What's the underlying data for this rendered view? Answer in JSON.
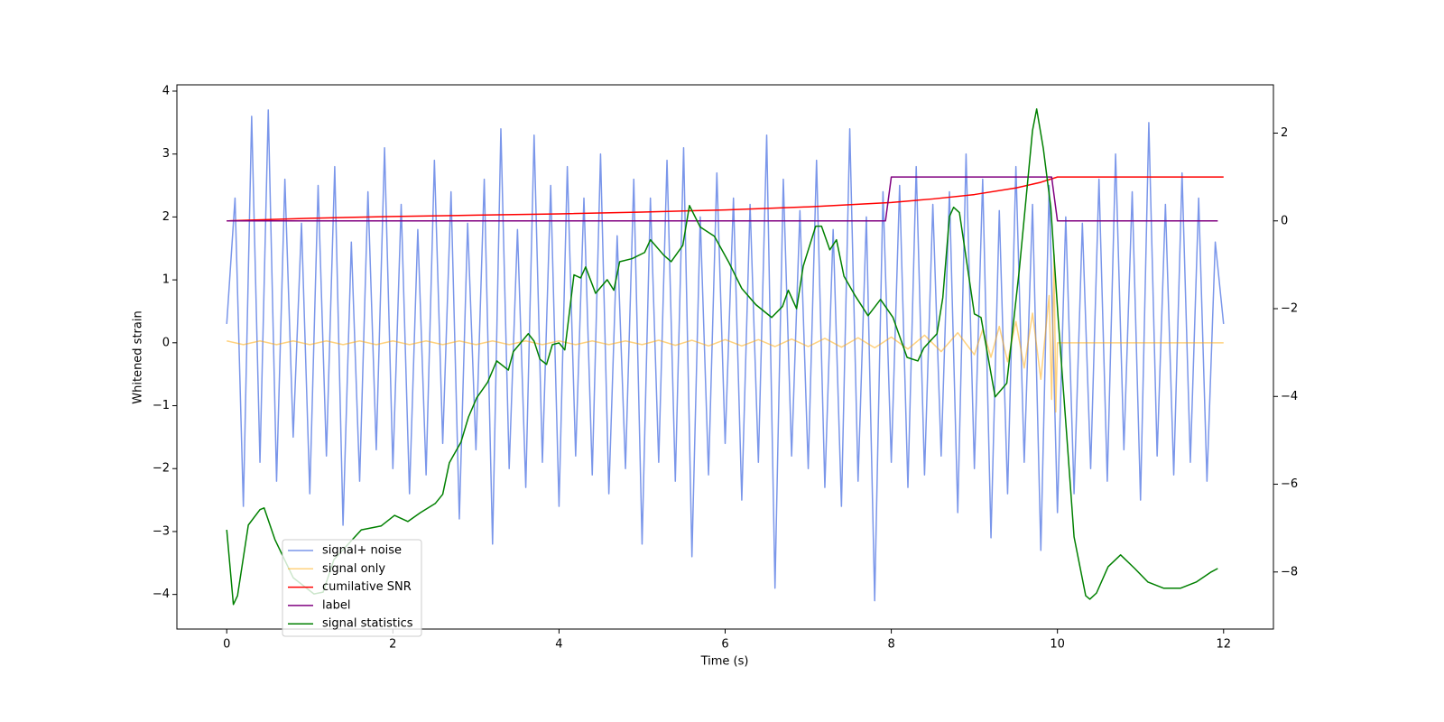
{
  "chart_data": {
    "type": "line",
    "xlabel": "Time (s)",
    "ylabel": "Whitened strain",
    "xlim": [
      -0.6,
      12.6
    ],
    "xticks": [
      0,
      2,
      4,
      6,
      8,
      10,
      12
    ],
    "ylim": [
      -4.55,
      4.1
    ],
    "yticks": [
      {
        "value": -4,
        "label": "−4"
      },
      {
        "value": -3,
        "label": "−3"
      },
      {
        "value": -2,
        "label": "−2"
      },
      {
        "value": -1,
        "label": "−1"
      },
      0,
      1,
      2,
      3,
      4
    ],
    "y2lim": [
      -9.3,
      3.1
    ],
    "y2ticks": [
      {
        "value": -8,
        "label": "−8"
      },
      {
        "value": -6,
        "label": "−6"
      },
      {
        "value": -4,
        "label": "−4"
      },
      {
        "value": -2,
        "label": "−2"
      },
      0,
      2
    ],
    "legend": "lower left",
    "series": [
      {
        "name": "signal+ noise",
        "color": "#4169e1",
        "alpha": 0.7,
        "x": [
          0,
          0.1,
          0.2,
          0.3,
          0.4,
          0.5,
          0.6,
          0.7,
          0.8,
          0.9,
          1,
          1.1,
          1.2,
          1.3,
          1.4,
          1.5,
          1.6,
          1.7,
          1.8,
          1.9,
          2,
          2.1,
          2.2,
          2.3,
          2.4,
          2.5,
          2.6,
          2.7,
          2.8,
          2.9,
          3,
          3.1,
          3.2,
          3.3,
          3.4,
          3.5,
          3.6,
          3.7,
          3.8,
          3.9,
          4,
          4.1,
          4.2,
          4.3,
          4.4,
          4.5,
          4.6,
          4.7,
          4.8,
          4.9,
          5,
          5.1,
          5.2,
          5.3,
          5.4,
          5.5,
          5.6,
          5.7,
          5.8,
          5.9,
          6,
          6.1,
          6.2,
          6.3,
          6.4,
          6.5,
          6.6,
          6.7,
          6.8,
          6.9,
          7,
          7.1,
          7.2,
          7.3,
          7.4,
          7.5,
          7.6,
          7.7,
          7.8,
          7.9,
          8,
          8.1,
          8.2,
          8.3,
          8.4,
          8.5,
          8.6,
          8.7,
          8.8,
          8.9,
          9,
          9.1,
          9.2,
          9.3,
          9.4,
          9.5,
          9.6,
          9.7,
          9.8,
          9.9,
          10,
          10.1,
          10.2,
          10.3,
          10.4,
          10.5,
          10.6,
          10.7,
          10.8,
          10.9,
          11,
          11.1,
          11.2,
          11.3,
          11.4,
          11.5,
          11.6,
          11.7,
          11.8,
          11.9,
          12
        ],
        "values": [
          0.3,
          2.3,
          -2.6,
          3.6,
          -1.9,
          3.7,
          -2.2,
          2.6,
          -1.5,
          1.9,
          -2.4,
          2.5,
          -1.8,
          2.8,
          -2.9,
          1.6,
          -2.2,
          2.4,
          -1.7,
          3.1,
          -2.0,
          2.2,
          -2.4,
          1.8,
          -2.1,
          2.9,
          -1.6,
          2.4,
          -2.8,
          1.9,
          -1.7,
          2.6,
          -3.2,
          3.4,
          -2.0,
          1.8,
          -2.3,
          3.3,
          -1.9,
          2.5,
          -2.6,
          2.8,
          -1.8,
          2.3,
          -2.1,
          3.0,
          -2.4,
          1.7,
          -2.0,
          2.6,
          -3.2,
          2.3,
          -1.9,
          2.9,
          -2.2,
          3.1,
          -3.4,
          2.0,
          -2.1,
          2.7,
          -1.6,
          2.3,
          -2.5,
          2.2,
          -1.9,
          3.3,
          -3.9,
          2.6,
          -1.8,
          2.1,
          -2.0,
          2.9,
          -2.3,
          1.8,
          -2.6,
          3.4,
          -2.2,
          2.0,
          -4.1,
          2.4,
          -1.9,
          2.5,
          -2.3,
          2.8,
          -2.1,
          2.2,
          -1.8,
          2.4,
          -2.7,
          3.0,
          -2.0,
          2.6,
          -3.1,
          2.1,
          -2.4,
          2.8,
          -1.9,
          2.2,
          -3.3,
          2.5,
          -2.7,
          2.0,
          -2.4,
          1.9,
          -2.0,
          2.6,
          -2.2,
          3.0,
          -1.7,
          2.4,
          -2.5,
          3.5,
          -1.8,
          2.2,
          -2.1,
          2.7,
          -1.9,
          2.3,
          -2.2,
          1.6,
          0.3
        ]
      },
      {
        "name": "signal only",
        "color": "#ffa500",
        "alpha": 0.5,
        "x": [
          0,
          0.2,
          0.4,
          0.6,
          0.8,
          1,
          1.2,
          1.4,
          1.6,
          1.8,
          2,
          2.2,
          2.4,
          2.6,
          2.8,
          3,
          3.2,
          3.4,
          3.6,
          3.8,
          4,
          4.2,
          4.4,
          4.6,
          4.8,
          5,
          5.2,
          5.4,
          5.6,
          5.8,
          6,
          6.2,
          6.4,
          6.6,
          6.8,
          7,
          7.2,
          7.4,
          7.6,
          7.8,
          8,
          8.2,
          8.4,
          8.6,
          8.8,
          9,
          9.1,
          9.2,
          9.3,
          9.4,
          9.5,
          9.6,
          9.7,
          9.8,
          9.9,
          9.93,
          9.96,
          9.98,
          10,
          12
        ],
        "values": [
          0.03,
          -0.03,
          0.03,
          -0.03,
          0.03,
          -0.03,
          0.03,
          -0.03,
          0.03,
          -0.03,
          0.03,
          -0.03,
          0.03,
          -0.03,
          0.03,
          -0.03,
          0.03,
          -0.03,
          0.03,
          -0.03,
          0.03,
          -0.03,
          0.03,
          -0.03,
          0.03,
          -0.03,
          0.04,
          -0.04,
          0.04,
          -0.05,
          0.05,
          -0.05,
          0.05,
          -0.06,
          0.06,
          -0.06,
          0.07,
          -0.07,
          0.08,
          -0.08,
          0.09,
          -0.1,
          0.12,
          -0.14,
          0.16,
          -0.19,
          0.21,
          -0.23,
          0.26,
          -0.3,
          0.34,
          -0.4,
          0.47,
          -0.58,
          0.75,
          -0.9,
          1.4,
          -1.1,
          0,
          0
        ]
      },
      {
        "name": "cumilative SNR",
        "color": "#ff0000",
        "axis": "y2",
        "x": [
          0,
          1,
          2,
          3,
          4,
          5,
          6,
          7,
          8,
          8.5,
          9,
          9.5,
          9.8,
          10,
          12
        ],
        "values": [
          0,
          0.06,
          0.1,
          0.13,
          0.16,
          0.2,
          0.25,
          0.32,
          0.42,
          0.5,
          0.6,
          0.75,
          0.88,
          1,
          1
        ]
      },
      {
        "name": "label",
        "color": "#800080",
        "axis": "y2",
        "x": [
          0,
          7.93,
          8,
          9.93,
          10,
          11.93
        ],
        "values": [
          0,
          0,
          1,
          1,
          0,
          0
        ]
      },
      {
        "name": "signal statistics",
        "color": "#008000",
        "axis": "y2",
        "x": [
          0,
          0.08,
          0.13,
          0.26,
          0.4,
          0.45,
          0.58,
          0.8,
          1.05,
          1.16,
          1.29,
          1.62,
          1.86,
          2.02,
          2.18,
          2.33,
          2.51,
          2.6,
          2.68,
          2.82,
          2.91,
          3.01,
          3.14,
          3.25,
          3.39,
          3.45,
          3.63,
          3.7,
          3.77,
          3.85,
          3.92,
          4,
          4.07,
          4.18,
          4.26,
          4.32,
          4.44,
          4.58,
          4.66,
          4.73,
          4.88,
          5.03,
          5.1,
          5.26,
          5.35,
          5.49,
          5.57,
          5.7,
          5.87,
          6.04,
          6.2,
          6.37,
          6.56,
          6.69,
          6.76,
          6.86,
          6.94,
          7.09,
          7.16,
          7.26,
          7.34,
          7.43,
          7.56,
          7.72,
          7.87,
          8.02,
          8.19,
          8.32,
          8.39,
          8.55,
          8.62,
          8.7,
          8.75,
          8.82,
          9,
          9.08,
          9.25,
          9.39,
          9.54,
          9.7,
          9.75,
          9.83,
          9.92,
          10.01,
          10.11,
          10.2,
          10.34,
          10.39,
          10.47,
          10.61,
          10.76,
          10.93,
          11.09,
          11.28,
          11.48,
          11.67,
          11.85,
          11.93
        ],
        "values": [
          -7.04,
          -8.74,
          -8.54,
          -6.93,
          -6.58,
          -6.54,
          -7.26,
          -8.13,
          -8.5,
          -8.46,
          -7.72,
          -7.04,
          -6.95,
          -6.71,
          -6.85,
          -6.65,
          -6.44,
          -6.23,
          -5.51,
          -5.04,
          -4.47,
          -4.03,
          -3.68,
          -3.19,
          -3.4,
          -2.98,
          -2.57,
          -2.74,
          -3.15,
          -3.27,
          -2.82,
          -2.78,
          -2.94,
          -1.23,
          -1.3,
          -1.05,
          -1.65,
          -1.34,
          -1.58,
          -0.93,
          -0.86,
          -0.72,
          -0.43,
          -0.78,
          -0.93,
          -0.56,
          0.35,
          -0.14,
          -0.35,
          -0.93,
          -1.54,
          -1.91,
          -2.2,
          -1.95,
          -1.58,
          -2.0,
          -1.03,
          -0.12,
          -0.12,
          -0.66,
          -0.43,
          -1.26,
          -1.69,
          -2.16,
          -1.79,
          -2.2,
          -3.11,
          -3.19,
          -2.9,
          -2.57,
          -1.75,
          0.1,
          0.31,
          0.19,
          -2.12,
          -2.2,
          -4.01,
          -3.7,
          -1.13,
          2.06,
          2.55,
          1.65,
          0.31,
          -2.26,
          -4.84,
          -7.2,
          -8.54,
          -8.62,
          -8.48,
          -7.88,
          -7.61,
          -7.92,
          -8.23,
          -8.37,
          -8.37,
          -8.23,
          -8.0,
          -7.92
        ]
      }
    ]
  }
}
